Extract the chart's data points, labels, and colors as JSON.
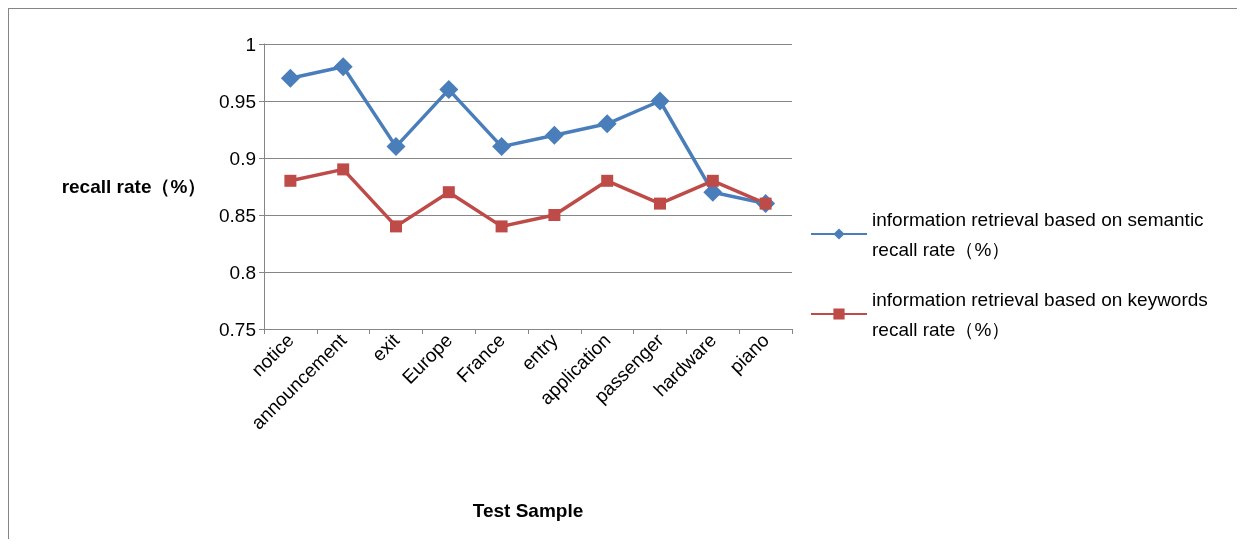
{
  "chart_data": {
    "type": "line",
    "xlabel": "Test Sample",
    "ylabel": "recall rate（%）",
    "categories": [
      "notice",
      "announcement",
      "exit",
      "Europe",
      "France",
      "entry",
      "application",
      "passenger",
      "hardware",
      "piano"
    ],
    "series": [
      {
        "name": "information retrieval based on semantic recall rate（%）",
        "color": "#4a7ebb",
        "marker": "diamond",
        "values": [
          0.97,
          0.98,
          0.91,
          0.96,
          0.91,
          0.92,
          0.93,
          0.95,
          0.87,
          0.86
        ]
      },
      {
        "name": "information retrieval based on keywords recall rate（%）",
        "color": "#be4b48",
        "marker": "square",
        "values": [
          0.88,
          0.89,
          0.84,
          0.87,
          0.84,
          0.85,
          0.88,
          0.86,
          0.88,
          0.86
        ]
      }
    ],
    "ylim": [
      0.75,
      1
    ],
    "yticks": [
      0.75,
      0.8,
      0.85,
      0.9,
      0.95,
      1
    ],
    "grid": "y",
    "legend": "right",
    "line_style": "solid"
  }
}
